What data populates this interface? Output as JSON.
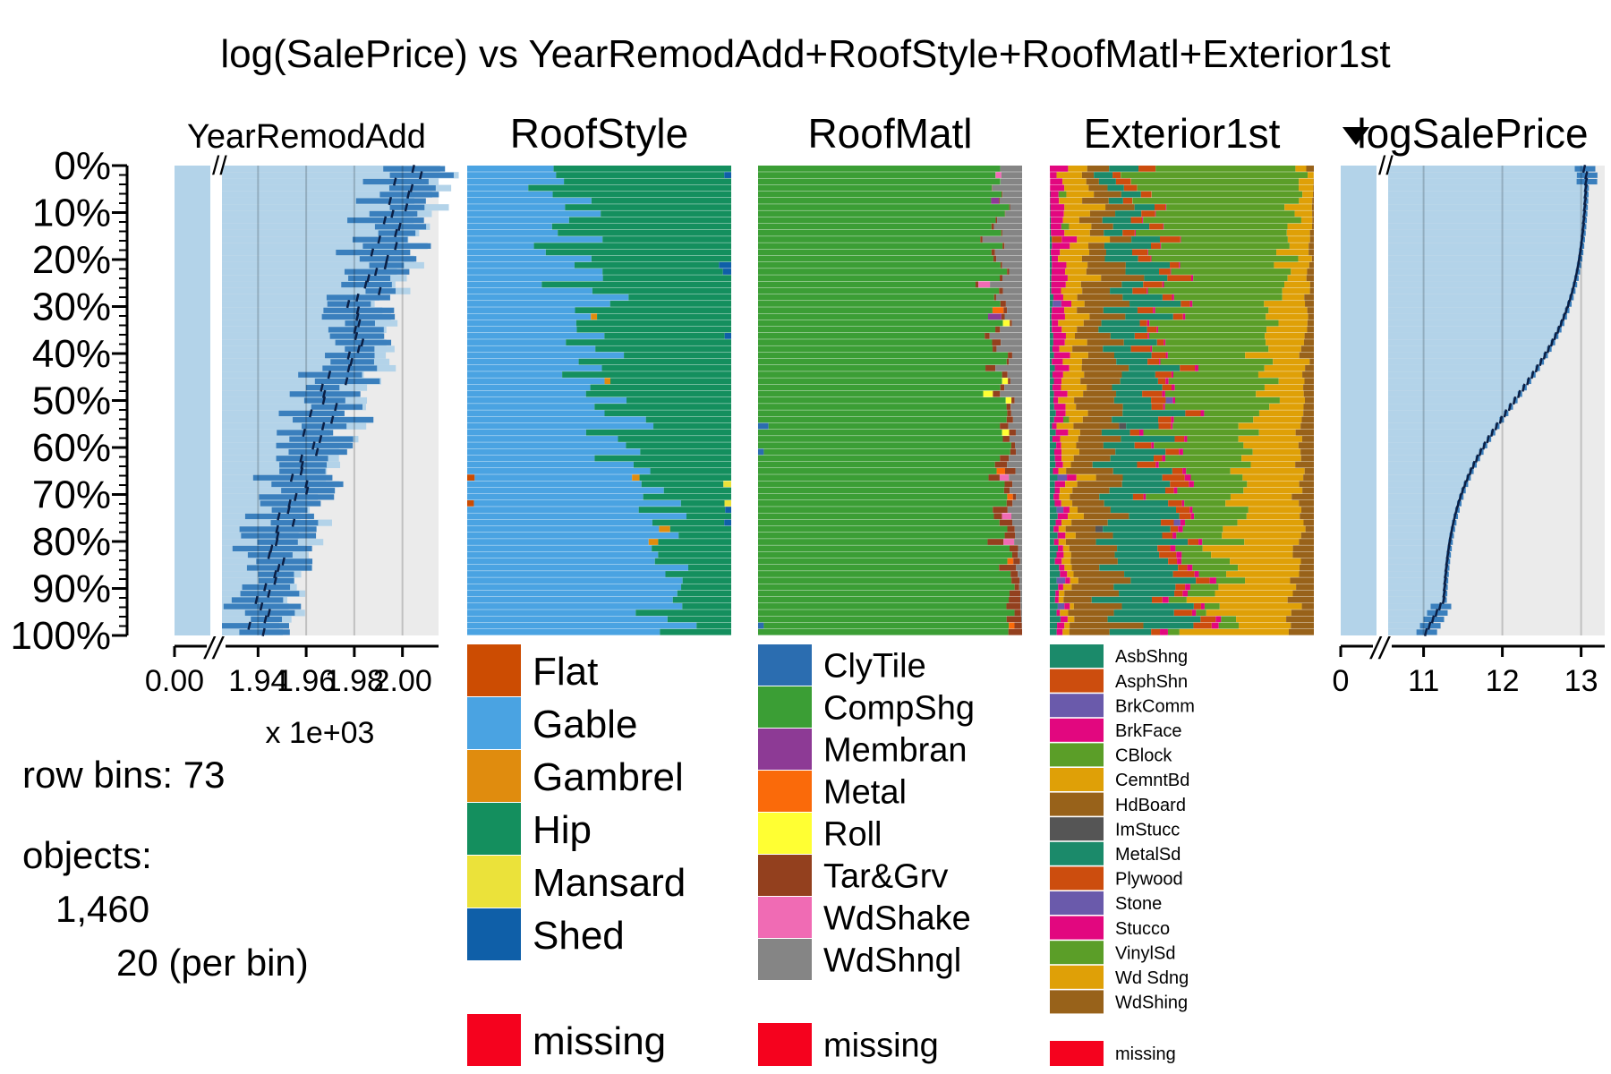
{
  "chart_data": {
    "type": "tableplot",
    "title": "log(SalePrice) vs YearRemodAdd+RoofStyle+RoofMatl+Exterior1st",
    "row_bins": 73,
    "objects_total": "1,460",
    "objects_per_bin": 20,
    "texts": {
      "row_bins": "row bins: 73",
      "objects_label": "objects:",
      "objects_total": "1,460",
      "objects_per_bin": "20 (per bin)",
      "x_multiplier": "x 1e+03",
      "missing": "missing"
    },
    "y_ticks": [
      "0%",
      "10%",
      "20%",
      "30%",
      "40%",
      "50%",
      "60%",
      "70%",
      "80%",
      "90%",
      "100%"
    ],
    "columns": [
      {
        "name": "YearRemodAdd",
        "kind": "numeric",
        "axis_break": true,
        "tick_labels": [
          "0.00",
          "1.94",
          "1.96",
          "1.98",
          "2.00"
        ],
        "tick_values": [
          0,
          1.94,
          1.96,
          1.98,
          2.0
        ],
        "range": [
          1.925,
          2.015
        ],
        "mean_trend": [
          2.003,
          1.937
        ],
        "bar_spread": 0.012,
        "units": "x 1e+03"
      },
      {
        "name": "RoofStyle",
        "kind": "categorical",
        "categories": [
          "Flat",
          "Gable",
          "Gambrel",
          "Hip",
          "Mansard",
          "Shed"
        ],
        "colors": [
          "#cc4c02",
          "#4aa3e2",
          "#e08c0e",
          "#148f5e",
          "#ebe23a",
          "#0f5fa8"
        ],
        "proportions_top": [
          0.0,
          0.3,
          0.0,
          0.7,
          0.0,
          0.0
        ],
        "proportions_bottom": [
          0.0,
          0.82,
          0.0,
          0.18,
          0.0,
          0.0
        ],
        "missing_color": "#f5021e"
      },
      {
        "name": "RoofMatl",
        "kind": "categorical",
        "categories": [
          "ClyTile",
          "CompShg",
          "Membran",
          "Metal",
          "Roll",
          "Tar&Grv",
          "WdShake",
          "WdShngl"
        ],
        "colors": [
          "#2b6db0",
          "#3b9e35",
          "#8d3a95",
          "#fa6a0a",
          "#ffff33",
          "#93401e",
          "#f06bb4",
          "#858585"
        ],
        "proportions_top": [
          0.0,
          0.9,
          0.0,
          0.0,
          0.0,
          0.0,
          0.0,
          0.1
        ],
        "proportions_bottom": [
          0.0,
          0.96,
          0.0,
          0.0,
          0.0,
          0.04,
          0.0,
          0.0
        ],
        "missing_color": "#f5021e"
      },
      {
        "name": "Exterior1st",
        "kind": "categorical",
        "categories": [
          "AsbShng",
          "AsphShn",
          "BrkComm",
          "BrkFace",
          "CBlock",
          "CemntBd",
          "HdBoard",
          "ImStucc",
          "MetalSd",
          "Plywood",
          "Stone",
          "Stucco",
          "VinylSd",
          "Wd Sdng",
          "WdShing"
        ],
        "colors": [
          "#1b8a6a",
          "#cc4d0e",
          "#6a5aab",
          "#e2077f",
          "#5b9e28",
          "#dfa007",
          "#98621a",
          "#555555",
          "#1b8a6a",
          "#cc4d0e",
          "#6a5aab",
          "#e2077f",
          "#5b9e28",
          "#dfa007",
          "#98621a"
        ],
        "proportions_top": [
          0.0,
          0.0,
          0.0,
          0.05,
          0.0,
          0.1,
          0.08,
          0.0,
          0.08,
          0.05,
          0.0,
          0.0,
          0.6,
          0.04,
          0.0
        ],
        "proportions_bottom": [
          0.03,
          0.0,
          0.0,
          0.02,
          0.0,
          0.02,
          0.18,
          0.0,
          0.25,
          0.05,
          0.0,
          0.02,
          0.05,
          0.3,
          0.08
        ],
        "missing_color": "#f5021e"
      },
      {
        "name": "logSalePrice",
        "kind": "numeric",
        "axis_break": true,
        "sorted": true,
        "tick_labels": [
          "0",
          "11",
          "12",
          "13"
        ],
        "tick_values": [
          0,
          11,
          12,
          13
        ],
        "range": [
          10.55,
          13.3
        ],
        "mean_trend": [
          13.1,
          10.9
        ]
      }
    ]
  }
}
